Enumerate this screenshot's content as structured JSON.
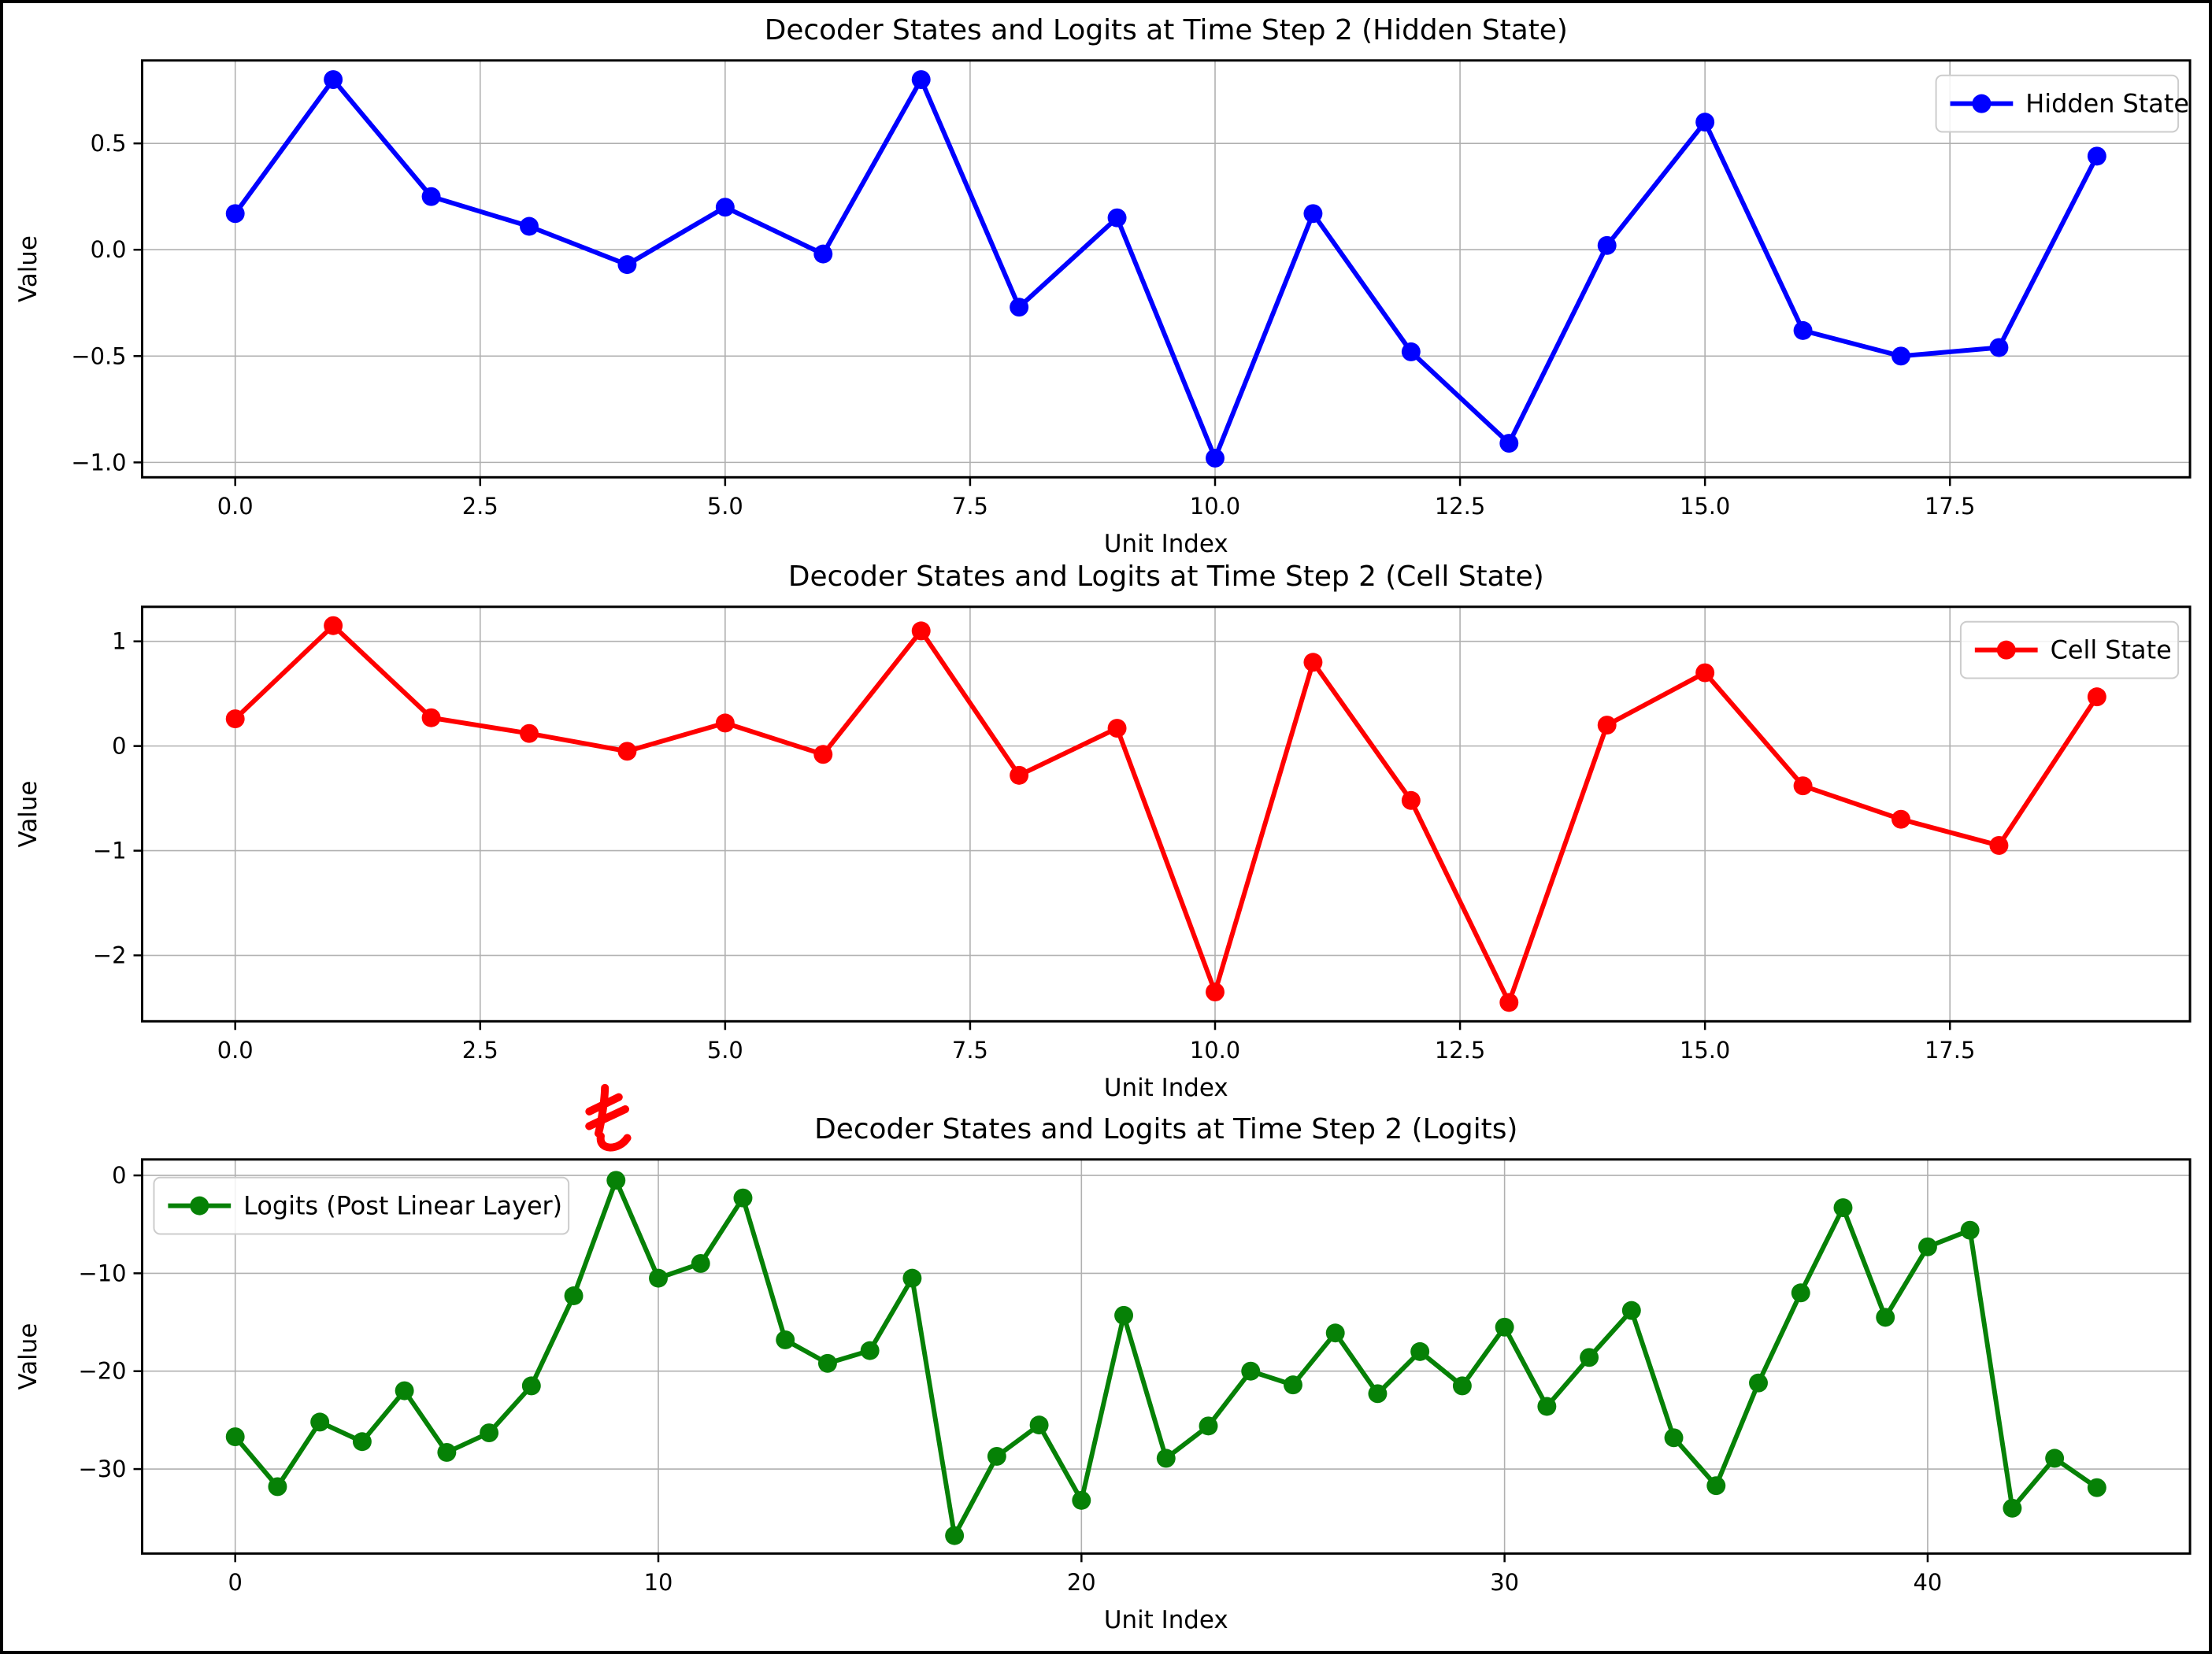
{
  "figure": {
    "background": "#ffffff",
    "frame_color": "#000000",
    "grid_color": "#b0b0b0",
    "spine_color": "#000000"
  },
  "chart_data": [
    {
      "type": "line",
      "title": "Decoder States and Logits at Time Step 2 (Hidden State)",
      "xlabel": "Unit Index",
      "ylabel": "Value",
      "legend": {
        "label": "Hidden State",
        "position": "upper-right"
      },
      "series_color": "#0000ff",
      "x": [
        0,
        1,
        2,
        3,
        4,
        5,
        6,
        7,
        8,
        9,
        10,
        11,
        12,
        13,
        14,
        15,
        16,
        17,
        18,
        19
      ],
      "values": [
        0.17,
        0.8,
        0.25,
        0.11,
        -0.07,
        0.2,
        -0.02,
        0.8,
        -0.27,
        0.15,
        -0.98,
        0.17,
        -0.48,
        -0.91,
        0.02,
        0.6,
        -0.38,
        -0.5,
        -0.46,
        0.44
      ],
      "xlim": [
        -0.95,
        19.95
      ],
      "ylim": [
        -1.07,
        0.89
      ],
      "xticks": {
        "values": [
          0,
          2.5,
          5,
          7.5,
          10,
          12.5,
          15,
          17.5
        ],
        "labels": [
          "0.0",
          "2.5",
          "5.0",
          "7.5",
          "10.0",
          "12.5",
          "15.0",
          "17.5"
        ]
      },
      "yticks": {
        "values": [
          0.5,
          0.0,
          -0.5,
          -1.0
        ],
        "labels": [
          "0.5",
          "0.0",
          "−0.5",
          "−1.0"
        ]
      },
      "grid": true
    },
    {
      "type": "line",
      "title": "Decoder States and Logits at Time Step 2 (Cell State)",
      "xlabel": "Unit Index",
      "ylabel": "Value",
      "legend": {
        "label": "Cell State",
        "position": "upper-right"
      },
      "series_color": "#ff0000",
      "x": [
        0,
        1,
        2,
        3,
        4,
        5,
        6,
        7,
        8,
        9,
        10,
        11,
        12,
        13,
        14,
        15,
        16,
        17,
        18,
        19
      ],
      "values": [
        0.26,
        1.15,
        0.27,
        0.12,
        -0.05,
        0.22,
        -0.08,
        1.1,
        -0.28,
        0.17,
        -2.35,
        0.8,
        -0.52,
        -2.45,
        0.2,
        0.7,
        -0.38,
        -0.7,
        -0.95,
        0.47
      ],
      "xlim": [
        -0.95,
        19.95
      ],
      "ylim": [
        -2.63,
        1.33
      ],
      "xticks": {
        "values": [
          0,
          2.5,
          5,
          7.5,
          10,
          12.5,
          15,
          17.5
        ],
        "labels": [
          "0.0",
          "2.5",
          "5.0",
          "7.5",
          "10.0",
          "12.5",
          "15.0",
          "17.5"
        ]
      },
      "yticks": {
        "values": [
          1,
          0,
          -1,
          -2
        ],
        "labels": [
          "1",
          "0",
          "−1",
          "−2"
        ]
      },
      "grid": true
    },
    {
      "type": "line",
      "title": "Decoder States and Logits at Time Step 2 (Logits)",
      "xlabel": "Unit Index",
      "ylabel": "Value",
      "legend": {
        "label": "Logits (Post Linear Layer)",
        "position": "upper-left"
      },
      "series_color": "#068106",
      "x": [
        0,
        1,
        2,
        3,
        4,
        5,
        6,
        7,
        8,
        9,
        10,
        11,
        12,
        13,
        14,
        15,
        16,
        17,
        18,
        19,
        20,
        21,
        22,
        23,
        24,
        25,
        26,
        27,
        28,
        29,
        30,
        31,
        32,
        33,
        34,
        35,
        36,
        37,
        38,
        39,
        40,
        41,
        42,
        43,
        44
      ],
      "values": [
        -26.7,
        -31.8,
        -25.2,
        -27.2,
        -22.0,
        -28.3,
        -26.3,
        -21.5,
        -12.3,
        -0.5,
        -10.5,
        -9.0,
        -2.3,
        -16.8,
        -19.2,
        -17.9,
        -10.5,
        -36.8,
        -28.7,
        -25.5,
        -33.2,
        -14.3,
        -28.9,
        -25.6,
        -20.0,
        -21.4,
        -16.1,
        -22.3,
        -18.0,
        -21.5,
        -15.5,
        -23.6,
        -18.6,
        -13.8,
        -26.8,
        -31.7,
        -21.2,
        -12.0,
        -3.3,
        -14.5,
        -7.3,
        -5.6,
        -34.0,
        -28.9,
        -31.9
      ],
      "xlim": [
        -2.2,
        46.2
      ],
      "ylim": [
        -38.63,
        1.63
      ],
      "xticks": {
        "values": [
          0,
          10,
          20,
          30,
          40
        ],
        "labels": [
          "0",
          "10",
          "20",
          "30",
          "40"
        ]
      },
      "yticks": {
        "values": [
          0,
          -10,
          -20,
          -30
        ],
        "labels": [
          "0",
          "−10",
          "−20",
          "−30"
        ]
      },
      "grid": true,
      "annotation": {
        "text": "き",
        "color": "#ff0000",
        "at_x": 9,
        "rotation_deg": -15,
        "bold": true
      }
    }
  ]
}
